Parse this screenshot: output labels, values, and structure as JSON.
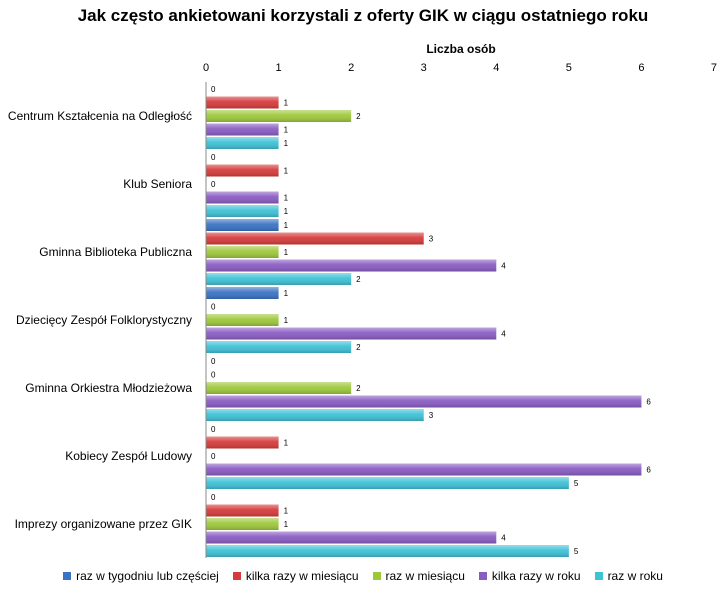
{
  "chart_data": {
    "type": "bar",
    "orientation": "horizontal",
    "title": "Jak często ankietowani korzystali z oferty GIK w ciągu ostatniego roku",
    "xlabel": "Liczba osób",
    "xlim": [
      0,
      7
    ],
    "x_ticks": [
      "0",
      "1",
      "2",
      "3",
      "4",
      "5",
      "6",
      "7"
    ],
    "categories": [
      "Centrum Kształcenia na Odległość",
      "Klub Seniora",
      "Gminna Biblioteka Publiczna",
      "Dziecięcy Zespół Folklorystyczny",
      "Gminna Orkiestra Młodzieżowa",
      "Kobiecy Zespół Ludowy",
      "Imprezy organizowane przez GIK"
    ],
    "series": [
      {
        "name": "raz w tygodniu lub częściej",
        "color": "#3a73c4",
        "values": [
          0,
          0,
          1,
          1,
          0,
          0,
          0
        ]
      },
      {
        "name": "kilka razy w miesiącu",
        "color": "#d63b3b",
        "values": [
          1,
          1,
          3,
          0,
          0,
          1,
          1
        ]
      },
      {
        "name": "raz w miesiącu",
        "color": "#9ec83a",
        "values": [
          2,
          0,
          1,
          1,
          2,
          0,
          1
        ]
      },
      {
        "name": "kilka razy w roku",
        "color": "#8a5cc2",
        "values": [
          1,
          1,
          4,
          4,
          6,
          6,
          4
        ]
      },
      {
        "name": "raz w roku",
        "color": "#3fc1d6",
        "values": [
          1,
          1,
          2,
          2,
          3,
          5,
          5
        ]
      }
    ],
    "legend_position": "bottom",
    "grid": false
  }
}
